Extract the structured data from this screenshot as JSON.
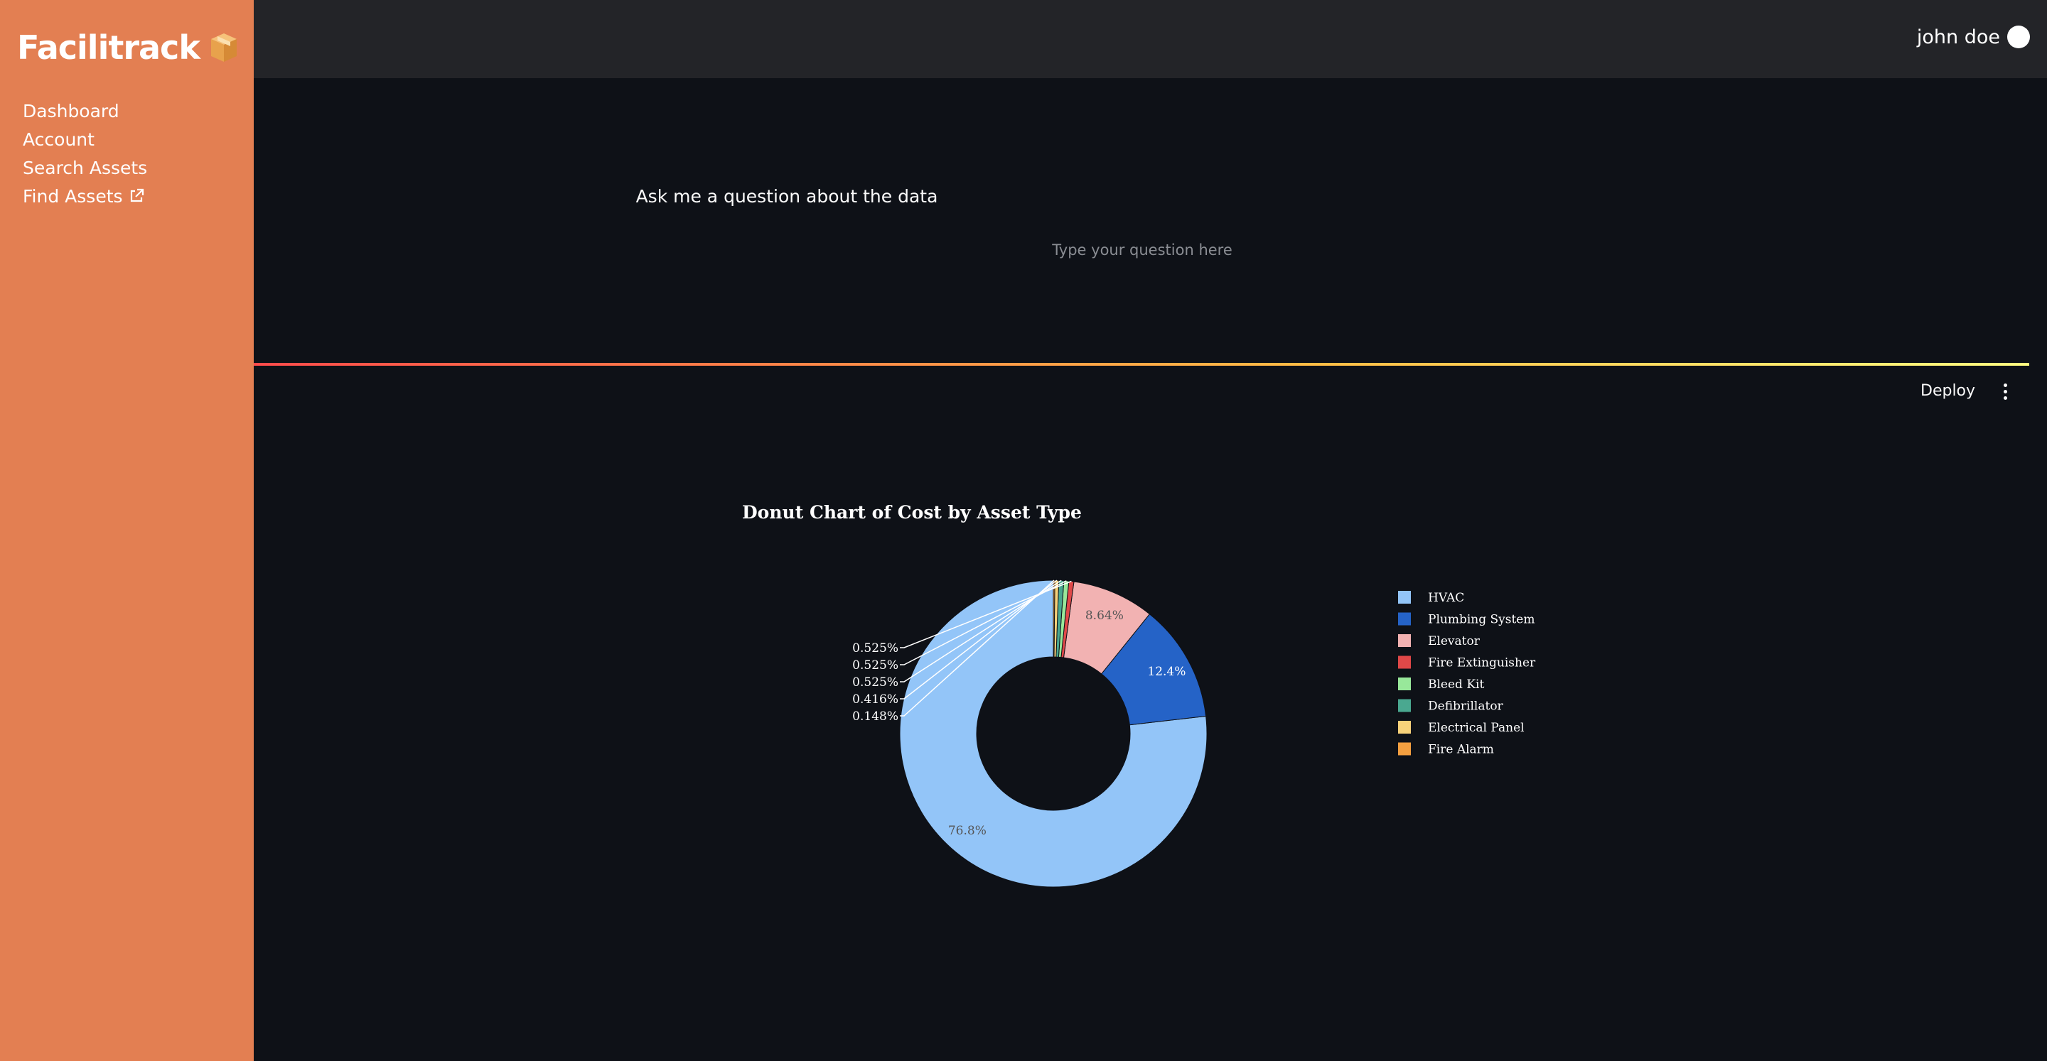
{
  "brand": {
    "name": "Facilitrack",
    "logo_icon": "package-box-icon"
  },
  "sidebar": {
    "items": [
      {
        "label": "Dashboard"
      },
      {
        "label": "Account"
      },
      {
        "label": "Search Assets"
      },
      {
        "label": "Find Assets",
        "icon": "external-link-icon"
      }
    ]
  },
  "header": {
    "user_name": "john doe"
  },
  "ask": {
    "title": "Ask me a question about the data",
    "placeholder": "Type your question here",
    "value": ""
  },
  "toolbar": {
    "deploy_label": "Deploy",
    "menu_icon": "kebab-menu-icon"
  },
  "colors": {
    "sidebar": "#e37f52",
    "background": "#0e1117",
    "topbar": "#232428"
  },
  "chart_data": {
    "type": "pie",
    "title": "Donut Chart of Cost by Asset Type",
    "hole": 0.5,
    "legend_position": "right",
    "categories": [
      "HVAC",
      "Plumbing System",
      "Elevator",
      "Fire Extinguisher",
      "Bleed Kit",
      "Defibrillator",
      "Electrical Panel",
      "Fire Alarm"
    ],
    "values": [
      76.8,
      12.4,
      8.64,
      0.525,
      0.525,
      0.525,
      0.416,
      0.148
    ],
    "labels": [
      "76.8%",
      "12.4%",
      "8.64%",
      "0.525%",
      "0.525%",
      "0.525%",
      "0.416%",
      "0.148%"
    ],
    "colors": [
      "#93c5f8",
      "#2563c7",
      "#f2b2b2",
      "#e04848",
      "#98e89a",
      "#4aa890",
      "#f7d27a",
      "#f4a040"
    ]
  }
}
